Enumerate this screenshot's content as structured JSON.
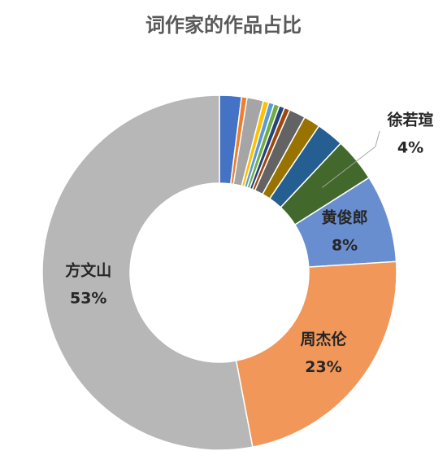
{
  "chart_data": {
    "type": "donut",
    "title": "词作家的作品占比",
    "categories": [
      null,
      null,
      null,
      null,
      null,
      null,
      null,
      null,
      null,
      null,
      null,
      "徐若瑄",
      "黄俊郎",
      "周杰伦",
      "方文山"
    ],
    "values": [
      2,
      0.5,
      1.5,
      0.5,
      0.5,
      0.5,
      0.5,
      0.5,
      1.5,
      1.5,
      2.5,
      4,
      8,
      23,
      53
    ],
    "value_labels": [
      null,
      null,
      null,
      null,
      null,
      null,
      null,
      null,
      null,
      null,
      null,
      "4%",
      "8%",
      "23%",
      "53%"
    ],
    "colors": [
      "#4472c4",
      "#ed7d31",
      "#a5a5a5",
      "#ffc000",
      "#5b9bd5",
      "#70ad47",
      "#264478",
      "#9e480e",
      "#636363",
      "#997300",
      "#255e91",
      "#43682b",
      "#698ed0",
      "#f1975a",
      "#b7b7b7"
    ]
  }
}
